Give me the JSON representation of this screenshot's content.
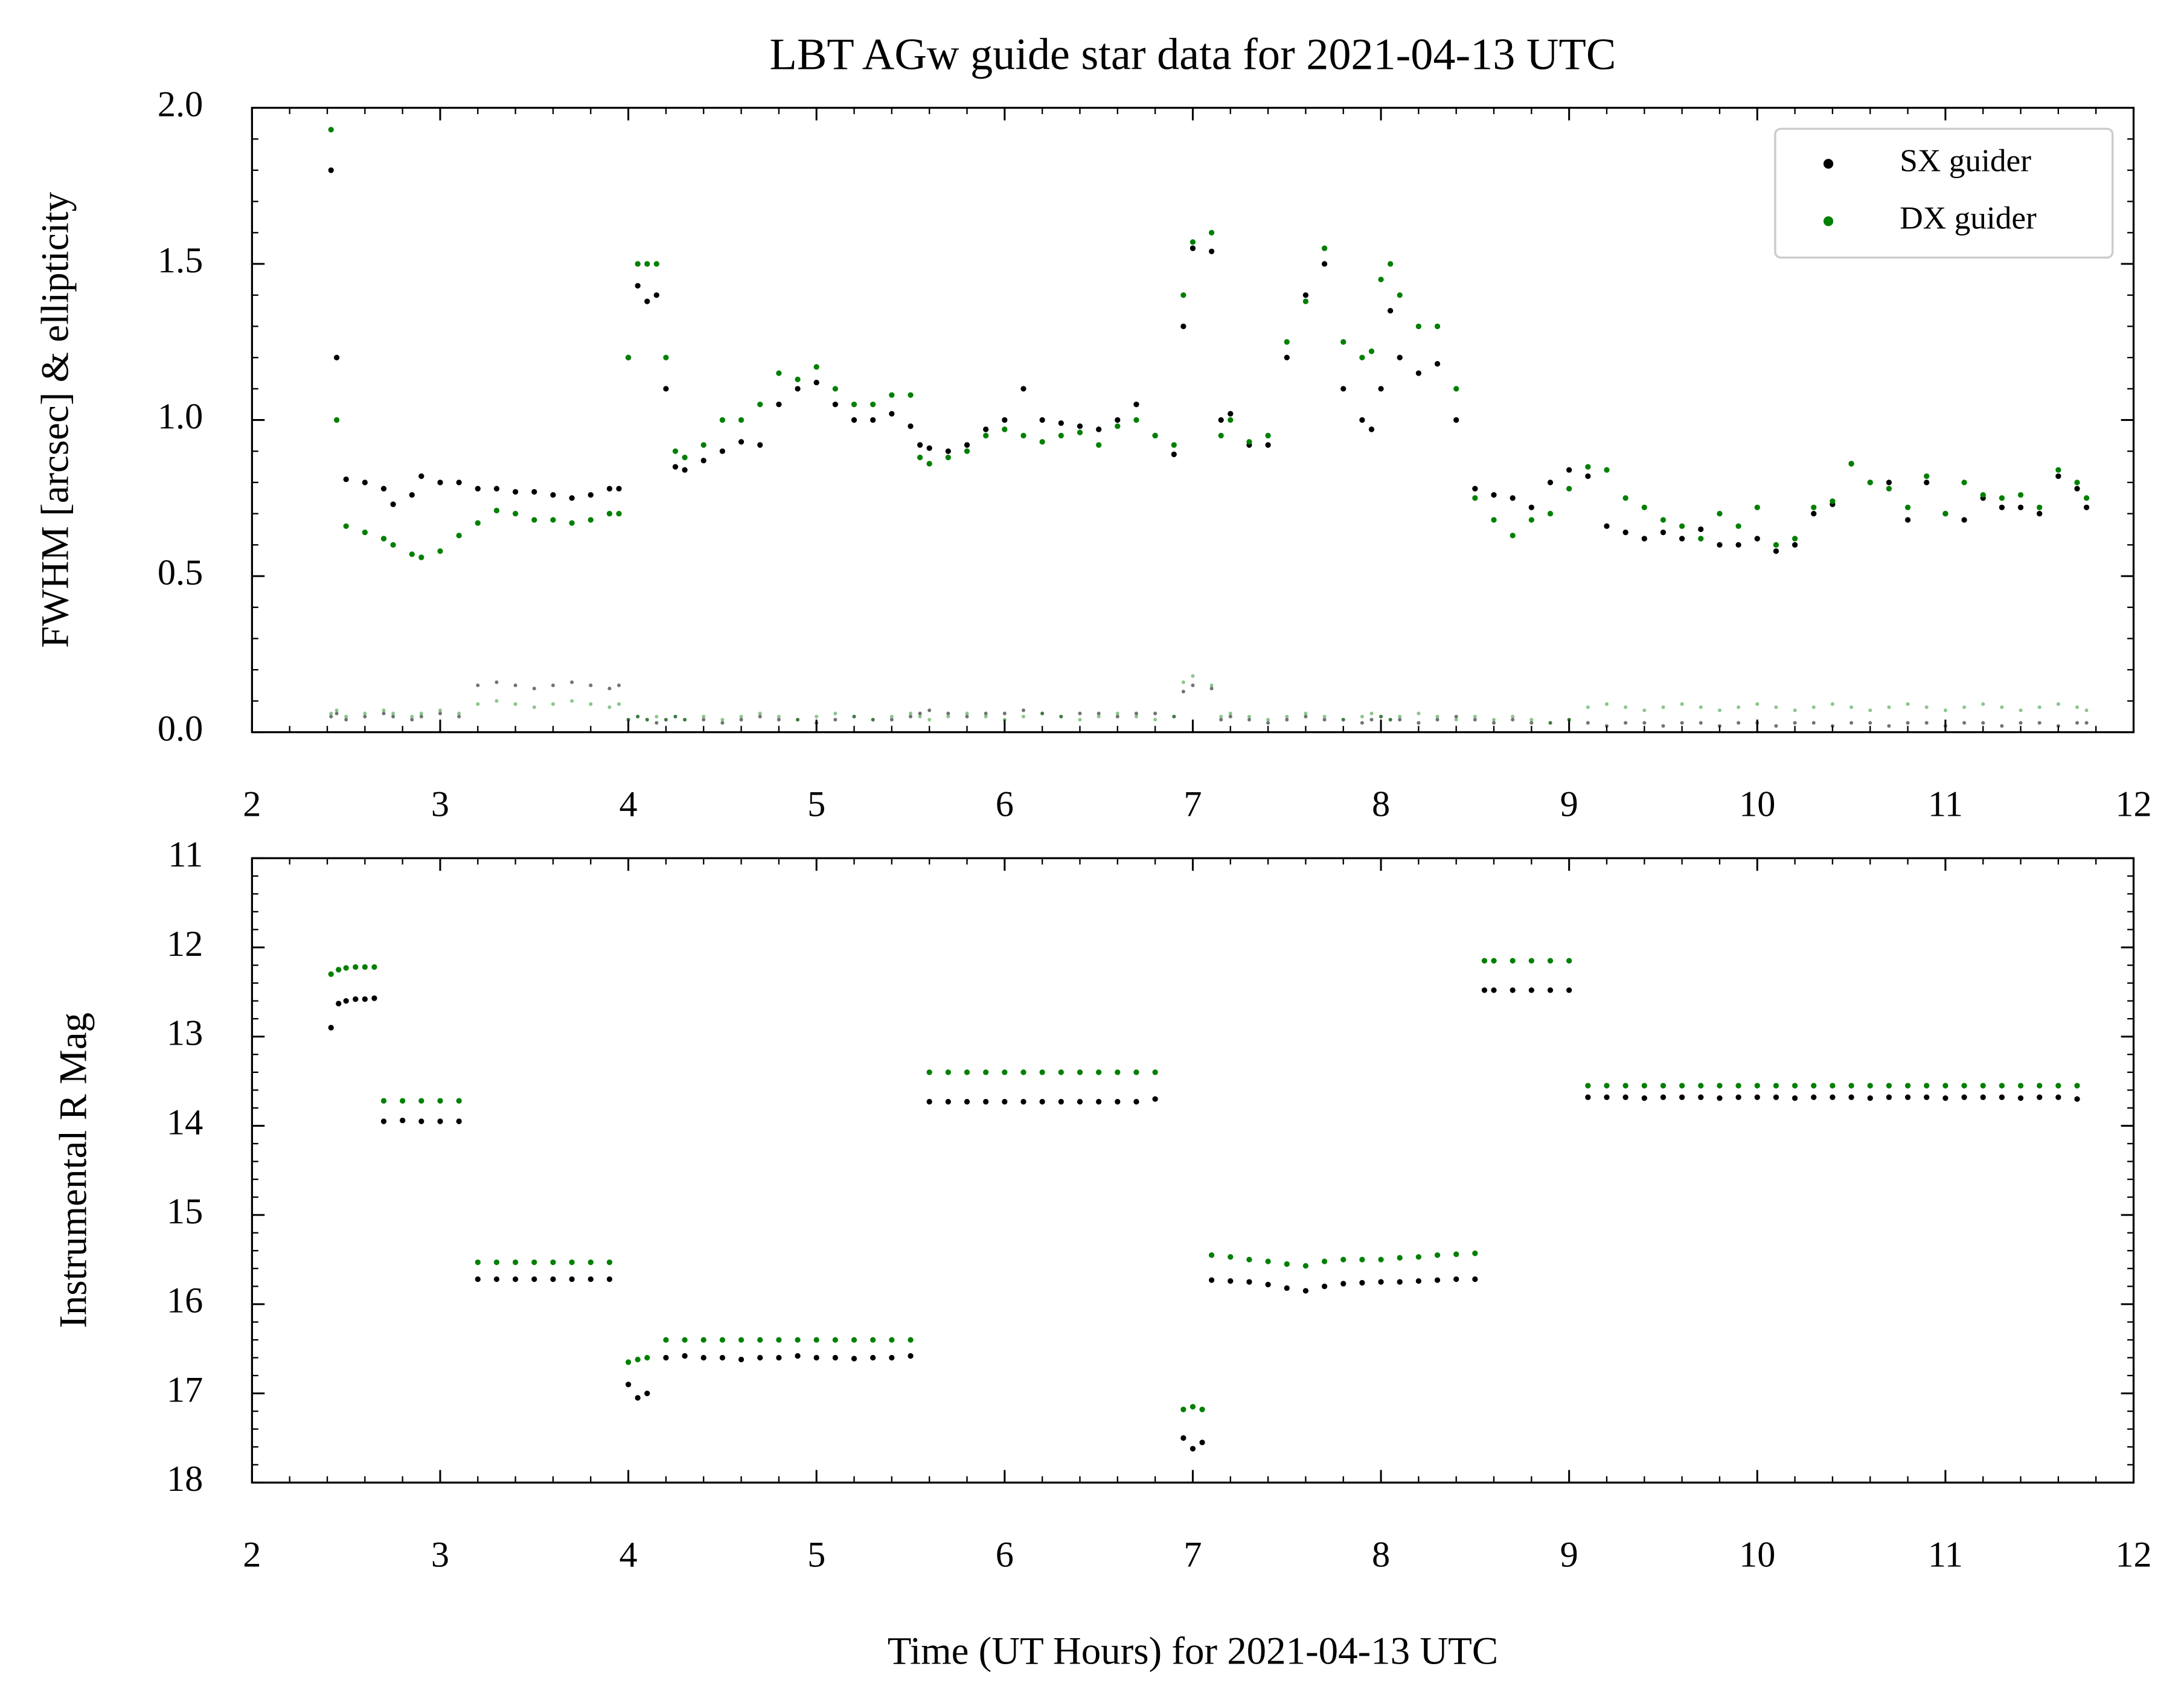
{
  "chart_data": [
    {
      "type": "scatter",
      "title": "LBT AGw guide star data for 2021-04-13 UTC",
      "ylabel": "FWHM [arcsec] & ellipticity",
      "xlim": [
        2,
        12
      ],
      "xticks": [
        2,
        3,
        4,
        5,
        6,
        7,
        8,
        9,
        10,
        11,
        12
      ],
      "ylim": [
        0,
        2
      ],
      "yticks": [
        {
          "value": 0,
          "label": "0.0"
        },
        0.5,
        {
          "value": 1,
          "label": "1.0"
        },
        1.5,
        {
          "value": 2,
          "label": "2.0"
        }
      ],
      "legend": "upper right",
      "x": [
        2.42,
        2.45,
        2.5,
        2.6,
        2.7,
        2.75,
        2.85,
        2.9,
        3.0,
        3.1,
        3.2,
        3.3,
        3.4,
        3.5,
        3.6,
        3.7,
        3.8,
        3.9,
        3.95,
        4.0,
        4.05,
        4.1,
        4.15,
        4.2,
        4.25,
        4.3,
        4.4,
        4.5,
        4.6,
        4.7,
        4.8,
        4.9,
        5.0,
        5.1,
        5.2,
        5.3,
        5.4,
        5.5,
        5.55,
        5.6,
        5.7,
        5.8,
        5.9,
        6.0,
        6.1,
        6.2,
        6.3,
        6.4,
        6.5,
        6.6,
        6.7,
        6.8,
        6.9,
        6.95,
        7.0,
        7.1,
        7.15,
        7.2,
        7.3,
        7.4,
        7.5,
        7.6,
        7.7,
        7.8,
        7.9,
        7.95,
        8.0,
        8.05,
        8.1,
        8.2,
        8.3,
        8.4,
        8.5,
        8.6,
        8.7,
        8.8,
        8.9,
        9.0,
        9.1,
        9.2,
        9.3,
        9.4,
        9.5,
        9.6,
        9.7,
        9.8,
        9.9,
        10.0,
        10.1,
        10.2,
        10.3,
        10.4,
        10.5,
        10.6,
        10.7,
        10.8,
        10.9,
        11.0,
        11.1,
        11.2,
        11.3,
        11.4,
        11.5,
        11.6,
        11.7,
        11.75
      ],
      "series": [
        {
          "name": "SX guider",
          "color": "#000000",
          "values": [
            1.8,
            1.2,
            0.81,
            0.8,
            0.78,
            0.73,
            0.76,
            0.82,
            0.8,
            0.8,
            0.78,
            0.78,
            0.77,
            0.77,
            0.76,
            0.75,
            0.76,
            0.78,
            0.78,
            1.2,
            1.43,
            1.38,
            1.4,
            1.1,
            0.85,
            0.84,
            0.87,
            0.9,
            0.93,
            0.92,
            1.05,
            1.1,
            1.12,
            1.05,
            1.0,
            1.0,
            1.02,
            0.98,
            0.92,
            0.91,
            0.9,
            0.92,
            0.97,
            1.0,
            1.1,
            1.0,
            0.99,
            0.98,
            0.97,
            1.0,
            1.05,
            0.95,
            0.89,
            1.3,
            1.55,
            1.54,
            1.0,
            1.02,
            0.92,
            0.92,
            1.2,
            1.4,
            1.5,
            1.1,
            1.0,
            0.97,
            1.1,
            1.35,
            1.2,
            1.15,
            1.18,
            1.0,
            0.78,
            0.76,
            0.75,
            0.72,
            0.8,
            0.84,
            0.82,
            0.66,
            0.64,
            0.62,
            0.64,
            0.62,
            0.65,
            0.6,
            0.6,
            0.62,
            0.58,
            0.6,
            0.7,
            0.73,
            0.86,
            0.8,
            0.8,
            0.68,
            0.8,
            0.7,
            0.68,
            0.75,
            0.72,
            0.72,
            0.7,
            0.82,
            0.78,
            0.72
          ],
          "ellipticity": [
            0.05,
            0.06,
            0.04,
            0.05,
            0.06,
            0.05,
            0.04,
            0.05,
            0.06,
            0.05,
            0.15,
            0.16,
            0.15,
            0.14,
            0.15,
            0.16,
            0.15,
            0.14,
            0.15,
            0.04,
            0.05,
            0.04,
            0.03,
            0.04,
            0.05,
            0.04,
            0.04,
            0.03,
            0.04,
            0.05,
            0.04,
            0.04,
            0.03,
            0.04,
            0.05,
            0.04,
            0.04,
            0.05,
            0.06,
            0.07,
            0.06,
            0.05,
            0.06,
            0.06,
            0.07,
            0.06,
            0.05,
            0.06,
            0.06,
            0.05,
            0.06,
            0.06,
            0.05,
            0.13,
            0.15,
            0.14,
            0.04,
            0.05,
            0.04,
            0.03,
            0.04,
            0.05,
            0.04,
            0.04,
            0.03,
            0.04,
            0.05,
            0.04,
            0.04,
            0.03,
            0.04,
            0.05,
            0.04,
            0.03,
            0.04,
            0.03,
            0.03,
            0.04,
            0.03,
            0.02,
            0.03,
            0.03,
            0.02,
            0.03,
            0.03,
            0.02,
            0.03,
            0.03,
            0.02,
            0.03,
            0.03,
            0.02,
            0.03,
            0.03,
            0.02,
            0.03,
            0.03,
            0.02,
            0.03,
            0.03,
            0.02,
            0.03,
            0.03,
            0.02,
            0.03,
            0.03
          ]
        },
        {
          "name": "DX guider",
          "color": "#008000",
          "values": [
            1.93,
            1.0,
            0.66,
            0.64,
            0.62,
            0.6,
            0.57,
            0.56,
            0.58,
            0.63,
            0.67,
            0.71,
            0.7,
            0.68,
            0.68,
            0.67,
            0.68,
            0.7,
            0.7,
            1.2,
            1.5,
            1.5,
            1.5,
            1.2,
            0.9,
            0.88,
            0.92,
            1.0,
            1.0,
            1.05,
            1.15,
            1.13,
            1.17,
            1.1,
            1.05,
            1.05,
            1.08,
            1.08,
            0.88,
            0.86,
            0.88,
            0.9,
            0.95,
            0.97,
            0.95,
            0.93,
            0.95,
            0.96,
            0.92,
            0.98,
            1.0,
            0.95,
            0.92,
            1.4,
            1.57,
            1.6,
            0.95,
            1.0,
            0.93,
            0.95,
            1.25,
            1.38,
            1.55,
            1.25,
            1.2,
            1.22,
            1.45,
            1.5,
            1.4,
            1.3,
            1.3,
            1.1,
            0.75,
            0.68,
            0.63,
            0.68,
            0.7,
            0.78,
            0.85,
            0.84,
            0.75,
            0.72,
            0.68,
            0.66,
            0.62,
            0.7,
            0.66,
            0.72,
            0.6,
            0.62,
            0.72,
            0.74,
            0.86,
            0.8,
            0.78,
            0.72,
            0.82,
            0.7,
            0.8,
            0.76,
            0.75,
            0.76,
            0.72,
            0.84,
            0.8,
            0.75
          ],
          "ellipticity": [
            0.06,
            0.07,
            0.05,
            0.06,
            0.07,
            0.06,
            0.05,
            0.06,
            0.07,
            0.06,
            0.09,
            0.1,
            0.09,
            0.08,
            0.09,
            0.1,
            0.09,
            0.08,
            0.09,
            0.04,
            0.05,
            0.04,
            0.05,
            0.04,
            0.05,
            0.04,
            0.05,
            0.04,
            0.05,
            0.06,
            0.05,
            0.04,
            0.05,
            0.06,
            0.05,
            0.04,
            0.05,
            0.06,
            0.05,
            0.04,
            0.05,
            0.06,
            0.05,
            0.04,
            0.05,
            0.06,
            0.05,
            0.04,
            0.05,
            0.06,
            0.05,
            0.04,
            0.05,
            0.16,
            0.18,
            0.15,
            0.05,
            0.06,
            0.05,
            0.04,
            0.05,
            0.06,
            0.05,
            0.04,
            0.05,
            0.06,
            0.05,
            0.04,
            0.05,
            0.06,
            0.05,
            0.04,
            0.05,
            0.04,
            0.05,
            0.04,
            0.03,
            0.04,
            0.08,
            0.09,
            0.08,
            0.07,
            0.08,
            0.09,
            0.08,
            0.07,
            0.08,
            0.09,
            0.08,
            0.07,
            0.08,
            0.09,
            0.08,
            0.07,
            0.08,
            0.09,
            0.08,
            0.07,
            0.08,
            0.09,
            0.08,
            0.07,
            0.08,
            0.09,
            0.08,
            0.07
          ]
        }
      ]
    },
    {
      "type": "scatter",
      "ylabel": "Instrumental R Mag",
      "xlabel": "Time (UT Hours) for 2021-04-13 UTC",
      "xlim": [
        2,
        12
      ],
      "xticks": [
        2,
        3,
        4,
        5,
        6,
        7,
        8,
        9,
        10,
        11,
        12
      ],
      "ylim": [
        18,
        11
      ],
      "yticks": [
        11,
        12,
        13,
        14,
        15,
        16,
        17,
        18
      ],
      "x": [
        2.42,
        2.46,
        2.5,
        2.55,
        2.6,
        2.65,
        2.7,
        2.8,
        2.9,
        3.0,
        3.1,
        3.2,
        3.3,
        3.4,
        3.5,
        3.6,
        3.7,
        3.8,
        3.9,
        4.0,
        4.05,
        4.1,
        4.2,
        4.3,
        4.4,
        4.5,
        4.6,
        4.7,
        4.8,
        4.9,
        5.0,
        5.1,
        5.2,
        5.3,
        5.4,
        5.5,
        5.6,
        5.7,
        5.8,
        5.9,
        6.0,
        6.1,
        6.2,
        6.3,
        6.4,
        6.5,
        6.6,
        6.7,
        6.8,
        6.95,
        7.0,
        7.05,
        7.1,
        7.2,
        7.3,
        7.4,
        7.5,
        7.6,
        7.7,
        7.8,
        7.9,
        8.0,
        8.1,
        8.2,
        8.3,
        8.4,
        8.5,
        8.55,
        8.6,
        8.7,
        8.8,
        8.9,
        9.0,
        9.1,
        9.2,
        9.3,
        9.4,
        9.5,
        9.6,
        9.7,
        9.8,
        9.9,
        10.0,
        10.1,
        10.2,
        10.3,
        10.4,
        10.5,
        10.6,
        10.7,
        10.8,
        10.9,
        11.0,
        11.1,
        11.2,
        11.3,
        11.4,
        11.5,
        11.6,
        11.7
      ],
      "series": [
        {
          "name": "SX guider",
          "color": "#000000",
          "values": [
            12.9,
            12.63,
            12.6,
            12.58,
            12.58,
            12.57,
            13.95,
            13.94,
            13.95,
            13.95,
            13.95,
            15.72,
            15.72,
            15.72,
            15.72,
            15.72,
            15.72,
            15.72,
            15.72,
            16.9,
            17.05,
            17.0,
            16.6,
            16.58,
            16.6,
            16.6,
            16.62,
            16.6,
            16.6,
            16.58,
            16.6,
            16.6,
            16.61,
            16.6,
            16.6,
            16.58,
            13.73,
            13.73,
            13.73,
            13.73,
            13.73,
            13.73,
            13.73,
            13.73,
            13.73,
            13.73,
            13.73,
            13.73,
            13.7,
            17.5,
            17.62,
            17.55,
            15.73,
            15.74,
            15.75,
            15.78,
            15.82,
            15.85,
            15.8,
            15.77,
            15.76,
            15.75,
            15.75,
            15.74,
            15.73,
            15.72,
            15.72,
            12.48,
            12.48,
            12.48,
            12.48,
            12.48,
            12.48,
            13.68,
            13.68,
            13.68,
            13.69,
            13.68,
            13.68,
            13.68,
            13.69,
            13.68,
            13.68,
            13.68,
            13.69,
            13.68,
            13.68,
            13.68,
            13.69,
            13.68,
            13.68,
            13.68,
            13.69,
            13.68,
            13.68,
            13.68,
            13.69,
            13.68,
            13.68,
            13.7
          ]
        },
        {
          "name": "DX guider",
          "color": "#008000",
          "values": [
            12.3,
            12.25,
            12.23,
            12.22,
            12.22,
            12.22,
            13.72,
            13.72,
            13.72,
            13.72,
            13.72,
            15.53,
            15.53,
            15.53,
            15.53,
            15.53,
            15.53,
            15.53,
            15.53,
            16.65,
            16.62,
            16.6,
            16.4,
            16.4,
            16.4,
            16.4,
            16.4,
            16.4,
            16.4,
            16.4,
            16.4,
            16.4,
            16.4,
            16.4,
            16.4,
            16.4,
            13.4,
            13.4,
            13.4,
            13.4,
            13.4,
            13.4,
            13.4,
            13.4,
            13.4,
            13.4,
            13.4,
            13.4,
            13.4,
            17.18,
            17.15,
            17.18,
            15.45,
            15.47,
            15.5,
            15.52,
            15.55,
            15.57,
            15.52,
            15.5,
            15.5,
            15.5,
            15.48,
            15.47,
            15.45,
            15.44,
            15.43,
            12.15,
            12.15,
            12.15,
            12.15,
            12.15,
            12.15,
            13.55,
            13.55,
            13.55,
            13.55,
            13.55,
            13.55,
            13.55,
            13.55,
            13.55,
            13.55,
            13.55,
            13.55,
            13.55,
            13.55,
            13.55,
            13.55,
            13.55,
            13.55,
            13.55,
            13.55,
            13.55,
            13.55,
            13.55,
            13.55,
            13.55,
            13.55,
            13.55
          ]
        }
      ]
    }
  ]
}
